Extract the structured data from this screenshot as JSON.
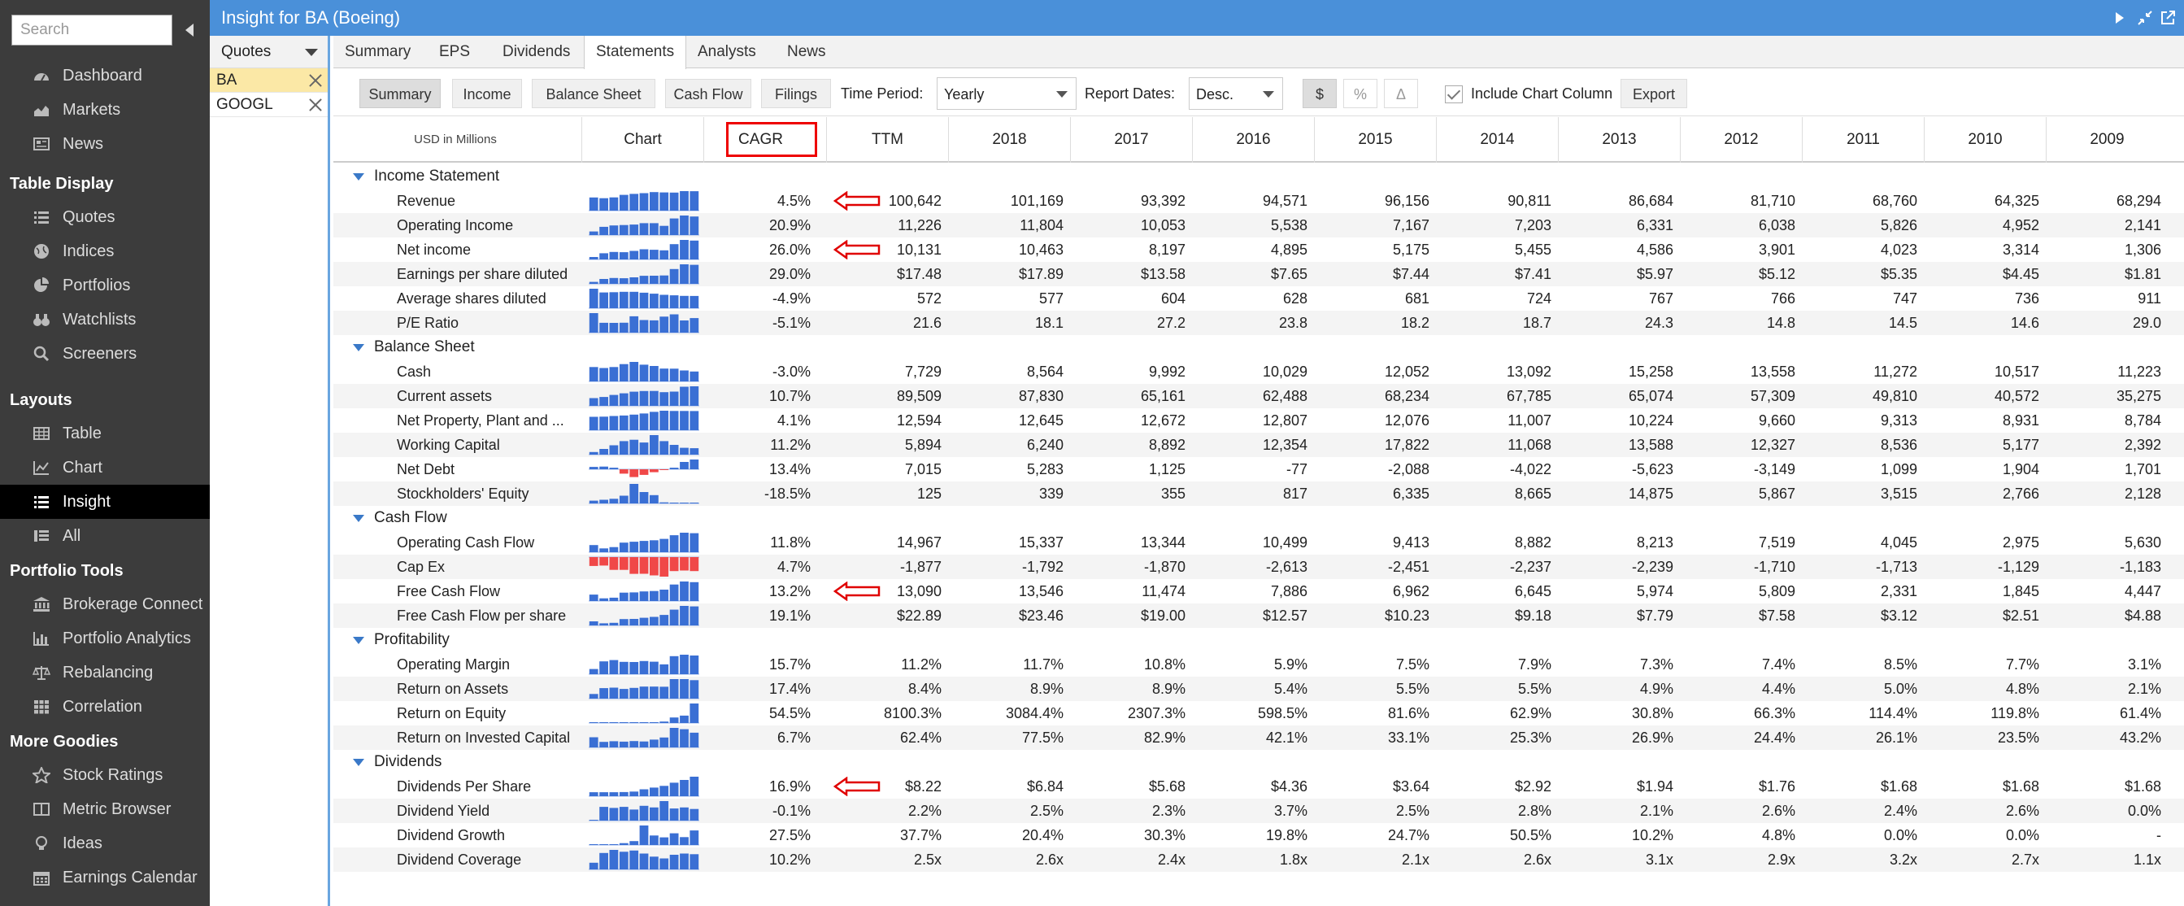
{
  "nav": {
    "search_placeholder": "Search",
    "sections": [
      {
        "header": "",
        "items": [
          {
            "label": "Dashboard",
            "icon": "dashboard-icon"
          },
          {
            "label": "Markets",
            "icon": "area-chart-icon"
          },
          {
            "label": "News",
            "icon": "newspaper-icon"
          }
        ]
      },
      {
        "header": "Table Display",
        "items": [
          {
            "label": "Quotes",
            "icon": "list-icon"
          },
          {
            "label": "Indices",
            "icon": "globe-icon"
          },
          {
            "label": "Portfolios",
            "icon": "pie-chart-icon"
          },
          {
            "label": "Watchlists",
            "icon": "binoculars-icon"
          },
          {
            "label": "Screeners",
            "icon": "search-icon"
          }
        ]
      },
      {
        "header": "Layouts",
        "items": [
          {
            "label": "Table",
            "icon": "table-icon"
          },
          {
            "label": "Chart",
            "icon": "line-chart-icon"
          },
          {
            "label": "Insight",
            "icon": "list-icon",
            "active": true
          },
          {
            "label": "All",
            "icon": "all-icon"
          }
        ]
      },
      {
        "header": "Portfolio Tools",
        "items": [
          {
            "label": "Brokerage Connect",
            "icon": "bank-icon"
          },
          {
            "label": "Portfolio Analytics",
            "icon": "bar-chart-icon"
          },
          {
            "label": "Rebalancing",
            "icon": "balance-scale-icon"
          },
          {
            "label": "Correlation",
            "icon": "grid-icon"
          }
        ]
      },
      {
        "header": "More Goodies",
        "items": [
          {
            "label": "Stock Ratings",
            "icon": "star-icon"
          },
          {
            "label": "Metric Browser",
            "icon": "columns-icon"
          },
          {
            "label": "Ideas",
            "icon": "lightbulb-icon"
          },
          {
            "label": "Earnings Calendar",
            "icon": "calendar-icon"
          }
        ]
      }
    ]
  },
  "window": {
    "title": "Insight for BA (Boeing)"
  },
  "quotes": {
    "header": "Quotes",
    "items": [
      "BA",
      "GOOGL"
    ]
  },
  "tabs": [
    "Summary",
    "EPS",
    "Dividends",
    "Statements",
    "Analysts",
    "News"
  ],
  "active_tab": "Statements",
  "toolbar": {
    "sub_buttons": [
      "Summary",
      "Income",
      "Balance Sheet",
      "Cash Flow",
      "Filings"
    ],
    "time_period_label": "Time Period:",
    "time_period_value": "Yearly",
    "report_dates_label": "Report Dates:",
    "report_dates_value": "Desc.",
    "unit_buttons": [
      "$",
      "%",
      "Δ"
    ],
    "include_chart_label": "Include Chart Column",
    "export_label": "Export"
  },
  "table": {
    "unit_label": "USD in Millions",
    "chart_col": "Chart",
    "cagr_col": "CAGR",
    "columns": [
      "TTM",
      "2018",
      "2017",
      "2016",
      "2015",
      "2014",
      "2013",
      "2012",
      "2011",
      "2010",
      "2009"
    ],
    "sections": [
      {
        "name": "Income Statement",
        "rows": [
          {
            "label": "Revenue",
            "cagr": "4.5%",
            "arrow": true,
            "values": [
              "100,642",
              "101,169",
              "93,392",
              "94,571",
              "96,156",
              "90,811",
              "86,684",
              "81,710",
              "68,760",
              "64,325",
              "68,294"
            ]
          },
          {
            "label": "Operating Income",
            "cagr": "20.9%",
            "values": [
              "11,226",
              "11,804",
              "10,053",
              "5,538",
              "7,167",
              "7,203",
              "6,331",
              "6,038",
              "5,826",
              "4,952",
              "2,141"
            ]
          },
          {
            "label": "Net income",
            "cagr": "26.0%",
            "arrow": true,
            "values": [
              "10,131",
              "10,463",
              "8,197",
              "4,895",
              "5,175",
              "5,455",
              "4,586",
              "3,901",
              "4,023",
              "3,314",
              "1,306"
            ]
          },
          {
            "label": "Earnings per share diluted",
            "cagr": "29.0%",
            "values": [
              "$17.48",
              "$17.89",
              "$13.58",
              "$7.65",
              "$7.44",
              "$7.41",
              "$5.97",
              "$5.12",
              "$5.35",
              "$4.45",
              "$1.81"
            ]
          },
          {
            "label": "Average shares diluted",
            "cagr": "-4.9%",
            "values": [
              "572",
              "577",
              "604",
              "628",
              "681",
              "724",
              "767",
              "766",
              "747",
              "736",
              "911"
            ]
          },
          {
            "label": "P/E Ratio",
            "cagr": "-5.1%",
            "values": [
              "21.6",
              "18.1",
              "27.2",
              "23.8",
              "18.2",
              "18.7",
              "24.3",
              "14.8",
              "14.5",
              "14.6",
              "29.0"
            ]
          }
        ]
      },
      {
        "name": "Balance Sheet",
        "rows": [
          {
            "label": "Cash",
            "cagr": "-3.0%",
            "values": [
              "7,729",
              "8,564",
              "9,992",
              "10,029",
              "12,052",
              "13,092",
              "15,258",
              "13,558",
              "11,272",
              "10,517",
              "11,223"
            ]
          },
          {
            "label": "Current assets",
            "cagr": "10.7%",
            "values": [
              "89,509",
              "87,830",
              "65,161",
              "62,488",
              "68,234",
              "67,785",
              "65,074",
              "57,309",
              "49,810",
              "40,572",
              "35,275"
            ]
          },
          {
            "label": "Net Property, Plant and ...",
            "cagr": "4.1%",
            "values": [
              "12,594",
              "12,645",
              "12,672",
              "12,807",
              "12,076",
              "11,007",
              "10,224",
              "9,660",
              "9,313",
              "8,931",
              "8,784"
            ]
          },
          {
            "label": "Working Capital",
            "cagr": "11.2%",
            "values": [
              "5,894",
              "6,240",
              "8,892",
              "12,354",
              "17,822",
              "11,068",
              "13,588",
              "12,327",
              "8,536",
              "5,177",
              "2,392"
            ]
          },
          {
            "label": "Net Debt",
            "cagr": "13.4%",
            "values": [
              "7,015",
              "5,283",
              "1,125",
              "-77",
              "-2,088",
              "-4,022",
              "-5,623",
              "-3,149",
              "1,099",
              "1,904",
              "1,701"
            ]
          },
          {
            "label": "Stockholders' Equity",
            "cagr": "-18.5%",
            "values": [
              "125",
              "339",
              "355",
              "817",
              "6,335",
              "8,665",
              "14,875",
              "5,867",
              "3,515",
              "2,766",
              "2,128"
            ]
          }
        ]
      },
      {
        "name": "Cash Flow",
        "rows": [
          {
            "label": "Operating Cash Flow",
            "cagr": "11.8%",
            "values": [
              "14,967",
              "15,337",
              "13,344",
              "10,499",
              "9,413",
              "8,882",
              "8,213",
              "7,519",
              "4,045",
              "2,975",
              "5,630"
            ]
          },
          {
            "label": "Cap Ex",
            "cagr": "4.7%",
            "values": [
              "-1,877",
              "-1,792",
              "-1,870",
              "-2,613",
              "-2,451",
              "-2,237",
              "-2,239",
              "-1,710",
              "-1,713",
              "-1,129",
              "-1,183"
            ]
          },
          {
            "label": "Free Cash Flow",
            "cagr": "13.2%",
            "arrow": true,
            "values": [
              "13,090",
              "13,546",
              "11,474",
              "7,886",
              "6,962",
              "6,645",
              "5,974",
              "5,809",
              "2,331",
              "1,845",
              "4,447"
            ]
          },
          {
            "label": "Free Cash Flow per share",
            "cagr": "19.1%",
            "values": [
              "$22.89",
              "$23.46",
              "$19.00",
              "$12.57",
              "$10.23",
              "$9.18",
              "$7.79",
              "$7.58",
              "$3.12",
              "$2.51",
              "$4.88"
            ]
          }
        ]
      },
      {
        "name": "Profitability",
        "rows": [
          {
            "label": "Operating Margin",
            "cagr": "15.7%",
            "values": [
              "11.2%",
              "11.7%",
              "10.8%",
              "5.9%",
              "7.5%",
              "7.9%",
              "7.3%",
              "7.4%",
              "8.5%",
              "7.7%",
              "3.1%"
            ]
          },
          {
            "label": "Return on Assets",
            "cagr": "17.4%",
            "values": [
              "8.4%",
              "8.9%",
              "8.9%",
              "5.4%",
              "5.5%",
              "5.5%",
              "4.9%",
              "4.4%",
              "5.0%",
              "4.8%",
              "2.1%"
            ]
          },
          {
            "label": "Return on Equity",
            "cagr": "54.5%",
            "values": [
              "8100.3%",
              "3084.4%",
              "2307.3%",
              "598.5%",
              "81.6%",
              "62.9%",
              "30.8%",
              "66.3%",
              "114.4%",
              "119.8%",
              "61.4%"
            ]
          },
          {
            "label": "Return on Invested Capital",
            "cagr": "6.7%",
            "values": [
              "62.4%",
              "77.5%",
              "82.9%",
              "42.1%",
              "33.1%",
              "25.3%",
              "26.9%",
              "24.4%",
              "26.1%",
              "23.5%",
              "43.2%"
            ]
          }
        ]
      },
      {
        "name": "Dividends",
        "rows": [
          {
            "label": "Dividends Per Share",
            "cagr": "16.9%",
            "arrow": true,
            "values": [
              "$8.22",
              "$6.84",
              "$5.68",
              "$4.36",
              "$3.64",
              "$2.92",
              "$1.94",
              "$1.76",
              "$1.68",
              "$1.68",
              "$1.68"
            ]
          },
          {
            "label": "Dividend Yield",
            "cagr": "-0.1%",
            "values": [
              "2.2%",
              "2.5%",
              "2.3%",
              "3.7%",
              "2.5%",
              "2.8%",
              "2.1%",
              "2.6%",
              "2.4%",
              "2.6%",
              "0.0%"
            ]
          },
          {
            "label": "Dividend Growth",
            "cagr": "27.5%",
            "values": [
              "37.7%",
              "20.4%",
              "30.3%",
              "19.8%",
              "24.7%",
              "50.5%",
              "10.2%",
              "4.8%",
              "0.0%",
              "0.0%",
              "-"
            ]
          },
          {
            "label": "Dividend Coverage",
            "cagr": "10.2%",
            "values": [
              "2.5x",
              "2.6x",
              "2.4x",
              "1.8x",
              "2.1x",
              "2.6x",
              "3.1x",
              "2.9x",
              "3.2x",
              "2.7x",
              "1.1x"
            ]
          }
        ]
      }
    ]
  },
  "colors": {
    "spark_pos": "#3a6fd4",
    "spark_neg": "#f04848",
    "arrow": "#e00000",
    "accent": "#4a90d9"
  }
}
